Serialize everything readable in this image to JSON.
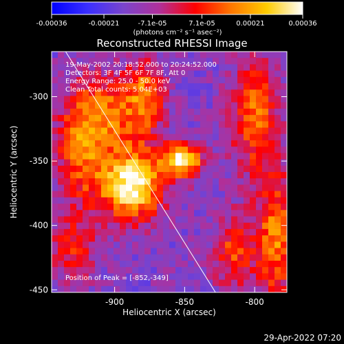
{
  "colorbar": {
    "tick_labels": [
      "-0.00036",
      "-0.00021",
      "-7.1e-05",
      "7.1e-05",
      "0.00021",
      "0.00036"
    ],
    "unit_label": "(photons cm⁻² s⁻¹ asec⁻²)",
    "range": [
      -0.00036,
      0.00036
    ],
    "colors": [
      "#0000ff",
      "#3a2fff",
      "#7a44cc",
      "#b0309a",
      "#ff0000",
      "#ff7700",
      "#ffcc00",
      "#ffffff"
    ]
  },
  "chart_data": {
    "type": "heatmap",
    "title": "Reconstructed RHESSI Image",
    "xlabel": "Heliocentric X (arcsec)",
    "ylabel": "Heliocentric Y (arcsec)",
    "xlim": [
      -945,
      -777
    ],
    "ylim": [
      -452,
      -265
    ],
    "xticks": [
      -900,
      -850,
      -800
    ],
    "yticks": [
      -300,
      -350,
      -400,
      -450
    ],
    "annotations": [
      "19-May-2002 20:18:52.000 to 20:24:52.000",
      "Detectors: 3F 4F 5F 6F 7F 8F, Att 0",
      "Energy Range: 25.0 - 50.0 keV",
      "Clean    Total counts: 5.04E+03"
    ],
    "peak_label": "Position of Peak = [-852,-349]",
    "peak": [
      -852,
      -349
    ],
    "sources": [
      {
        "x": -888,
        "y": -369,
        "amp": 1.0,
        "sx": 16,
        "sy": 18
      },
      {
        "x": -852,
        "y": -349,
        "amp": 0.95,
        "sx": 10,
        "sy": 9
      },
      {
        "x": -905,
        "y": -315,
        "amp": 0.55,
        "sx": 18,
        "sy": 22
      },
      {
        "x": -878,
        "y": -300,
        "amp": 0.5,
        "sx": 9,
        "sy": 20
      },
      {
        "x": -925,
        "y": -345,
        "amp": 0.45,
        "sx": 12,
        "sy": 30
      },
      {
        "x": -800,
        "y": -315,
        "amp": 0.55,
        "sx": 12,
        "sy": 30
      },
      {
        "x": -785,
        "y": -410,
        "amp": 0.6,
        "sx": 10,
        "sy": 35
      },
      {
        "x": -815,
        "y": -420,
        "amp": 0.45,
        "sx": 10,
        "sy": 20
      },
      {
        "x": -930,
        "y": -420,
        "amp": 0.35,
        "sx": 12,
        "sy": 18
      }
    ],
    "limb_line": {
      "x": [
        -935,
        -828
      ],
      "y": [
        -265,
        -452
      ]
    }
  },
  "footer": {
    "timestamp": "29-Apr-2022 07:20"
  }
}
